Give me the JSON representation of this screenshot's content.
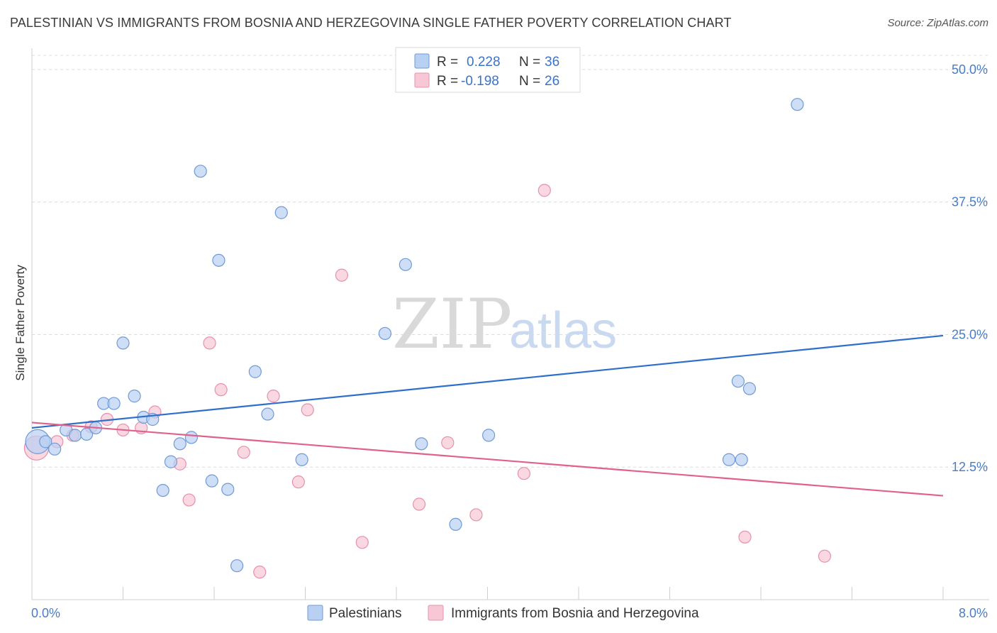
{
  "title": "PALESTINIAN VS IMMIGRANTS FROM BOSNIA AND HERZEGOVINA SINGLE FATHER POVERTY CORRELATION CHART",
  "source": "Source: ZipAtlas.com",
  "watermark": {
    "zip": "ZIP",
    "atlas": "atlas"
  },
  "legend": {
    "series1": {
      "r_label": "R =",
      "r_value": "0.228",
      "n_label": "N =",
      "n_value": "36"
    },
    "series2": {
      "r_label": "R =",
      "r_value": "-0.198",
      "n_label": "N =",
      "n_value": "26"
    }
  },
  "bottom_legend": {
    "series1": "Palestinians",
    "series2": "Immigrants from Bosnia and Herzegovina"
  },
  "colors": {
    "blue_fill": "#b8d0f2",
    "blue_stroke": "#6f9ad8",
    "blue_line": "#2e6fcc",
    "pink_fill": "#f8c7d6",
    "pink_stroke": "#e890ab",
    "pink_line": "#e0608e",
    "tick_text": "#4a7cc6"
  },
  "chart_data": {
    "type": "scatter",
    "title": "PALESTINIAN VS IMMIGRANTS FROM BOSNIA AND HERZEGOVINA SINGLE FATHER POVERTY CORRELATION CHART",
    "xlabel": "",
    "ylabel": "Single Father Poverty",
    "xlim": [
      0,
      8
    ],
    "ylim": [
      0,
      52
    ],
    "x_tick_labels": [
      "0.0%",
      "8.0%"
    ],
    "y_ticks": [
      12.5,
      25.0,
      37.5,
      50.0
    ],
    "y_tick_labels": [
      "12.5%",
      "25.0%",
      "37.5%",
      "50.0%"
    ],
    "grid": true,
    "series": [
      {
        "name": "Palestinians",
        "color": "blue",
        "trend": {
          "x": [
            0,
            8
          ],
          "y": [
            16.2,
            24.9
          ]
        },
        "points": [
          {
            "x": 0.05,
            "y": 14.9,
            "big": true
          },
          {
            "x": 0.12,
            "y": 14.9
          },
          {
            "x": 0.2,
            "y": 14.2
          },
          {
            "x": 0.3,
            "y": 16.0
          },
          {
            "x": 0.38,
            "y": 15.5
          },
          {
            "x": 0.48,
            "y": 15.6
          },
          {
            "x": 0.56,
            "y": 16.2
          },
          {
            "x": 0.63,
            "y": 18.5
          },
          {
            "x": 0.72,
            "y": 18.5
          },
          {
            "x": 0.8,
            "y": 24.2
          },
          {
            "x": 0.9,
            "y": 19.2
          },
          {
            "x": 0.98,
            "y": 17.2
          },
          {
            "x": 1.06,
            "y": 17.0
          },
          {
            "x": 1.15,
            "y": 10.3
          },
          {
            "x": 1.22,
            "y": 13.0
          },
          {
            "x": 1.3,
            "y": 14.7
          },
          {
            "x": 1.4,
            "y": 15.3
          },
          {
            "x": 1.48,
            "y": 40.4
          },
          {
            "x": 1.58,
            "y": 11.2
          },
          {
            "x": 1.64,
            "y": 32.0
          },
          {
            "x": 1.72,
            "y": 10.4
          },
          {
            "x": 1.8,
            "y": 3.2
          },
          {
            "x": 1.96,
            "y": 21.5
          },
          {
            "x": 2.07,
            "y": 17.5
          },
          {
            "x": 2.19,
            "y": 36.5
          },
          {
            "x": 2.37,
            "y": 13.2
          },
          {
            "x": 3.1,
            "y": 25.1
          },
          {
            "x": 3.28,
            "y": 31.6
          },
          {
            "x": 3.42,
            "y": 14.7
          },
          {
            "x": 3.72,
            "y": 7.1
          },
          {
            "x": 4.01,
            "y": 15.5
          },
          {
            "x": 6.12,
            "y": 13.2
          },
          {
            "x": 6.23,
            "y": 13.2
          },
          {
            "x": 6.2,
            "y": 20.6
          },
          {
            "x": 6.3,
            "y": 19.9
          },
          {
            "x": 6.72,
            "y": 46.7
          }
        ]
      },
      {
        "name": "Immigrants from Bosnia and Herzegovina",
        "color": "pink",
        "trend": {
          "x": [
            0,
            8
          ],
          "y": [
            16.7,
            9.8
          ]
        },
        "points": [
          {
            "x": 0.04,
            "y": 14.3,
            "big": true
          },
          {
            "x": 0.22,
            "y": 14.9
          },
          {
            "x": 0.36,
            "y": 15.5
          },
          {
            "x": 0.52,
            "y": 16.3
          },
          {
            "x": 0.66,
            "y": 17.0
          },
          {
            "x": 0.8,
            "y": 16.0
          },
          {
            "x": 0.96,
            "y": 16.2
          },
          {
            "x": 1.08,
            "y": 17.7
          },
          {
            "x": 1.3,
            "y": 12.8
          },
          {
            "x": 1.38,
            "y": 9.4
          },
          {
            "x": 1.56,
            "y": 24.2
          },
          {
            "x": 1.66,
            "y": 19.8
          },
          {
            "x": 1.86,
            "y": 13.9
          },
          {
            "x": 2.0,
            "y": 2.6
          },
          {
            "x": 2.12,
            "y": 19.2
          },
          {
            "x": 2.34,
            "y": 11.1
          },
          {
            "x": 2.42,
            "y": 17.9
          },
          {
            "x": 2.72,
            "y": 30.6
          },
          {
            "x": 2.9,
            "y": 5.4
          },
          {
            "x": 3.4,
            "y": 9.0
          },
          {
            "x": 3.65,
            "y": 14.8
          },
          {
            "x": 3.9,
            "y": 8.0
          },
          {
            "x": 4.32,
            "y": 11.9
          },
          {
            "x": 4.5,
            "y": 38.6
          },
          {
            "x": 6.26,
            "y": 5.9
          },
          {
            "x": 6.96,
            "y": 4.1
          }
        ]
      }
    ]
  }
}
